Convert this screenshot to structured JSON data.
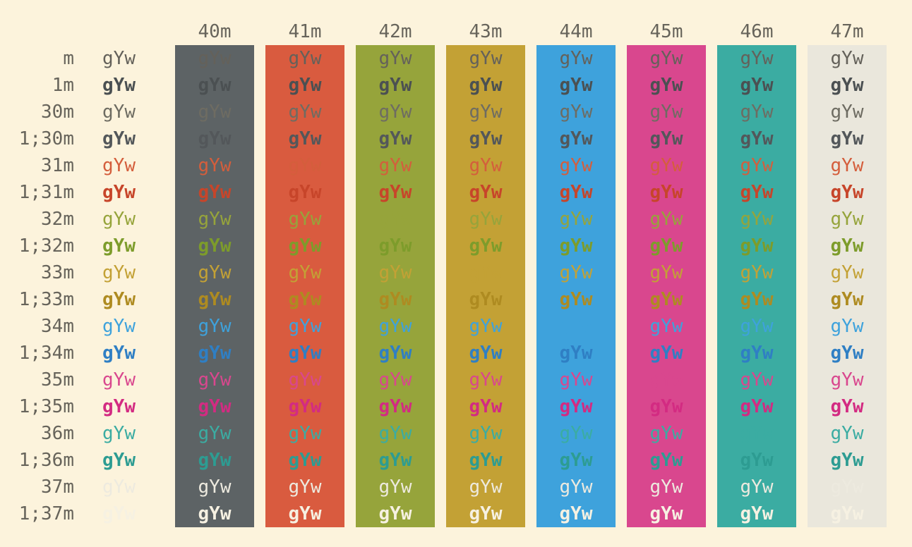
{
  "colortest": {
    "page_background": "#FCF3DC",
    "label_color": "#67645B",
    "test_string": "gYw",
    "columns": [
      {
        "label": "40m",
        "bg": "#5D6365"
      },
      {
        "label": "41m",
        "bg": "#D95B3F"
      },
      {
        "label": "42m",
        "bg": "#96A43B"
      },
      {
        "label": "43m",
        "bg": "#C3A135"
      },
      {
        "label": "44m",
        "bg": "#3EA2DC"
      },
      {
        "label": "45m",
        "bg": "#D9478E"
      },
      {
        "label": "46m",
        "bg": "#3BACA2"
      },
      {
        "label": "47m",
        "bg": "#EAE7DC"
      }
    ],
    "rows": [
      {
        "label": "m",
        "fg": "#64615A",
        "bold": false
      },
      {
        "label": "1m",
        "fg": "#4B5052",
        "bold": true
      },
      {
        "label": "30m",
        "fg": "#6E6C62",
        "bold": false
      },
      {
        "label": "1;30m",
        "fg": "#53575A",
        "bold": true
      },
      {
        "label": "31m",
        "fg": "#D45E3C",
        "bold": false
      },
      {
        "label": "1;31m",
        "fg": "#C7452A",
        "bold": true
      },
      {
        "label": "32m",
        "fg": "#96A43B",
        "bold": false
      },
      {
        "label": "1;32m",
        "fg": "#7D9C2B",
        "bold": true
      },
      {
        "label": "33m",
        "fg": "#C3A135",
        "bold": false
      },
      {
        "label": "1;33m",
        "fg": "#AE8B21",
        "bold": true
      },
      {
        "label": "34m",
        "fg": "#3EA2DC",
        "bold": false
      },
      {
        "label": "1;34m",
        "fg": "#2F7FC4",
        "bold": true
      },
      {
        "label": "35m",
        "fg": "#D9478E",
        "bold": false
      },
      {
        "label": "1;35m",
        "fg": "#D32B82",
        "bold": true
      },
      {
        "label": "36m",
        "fg": "#3BACA2",
        "bold": false
      },
      {
        "label": "1;36m",
        "fg": "#2D9C92",
        "bold": true
      },
      {
        "label": "37m",
        "fg": "#EDEADF",
        "bold": false
      },
      {
        "label": "1;37m",
        "fg": "#F6F1E2",
        "bold": true
      }
    ]
  }
}
